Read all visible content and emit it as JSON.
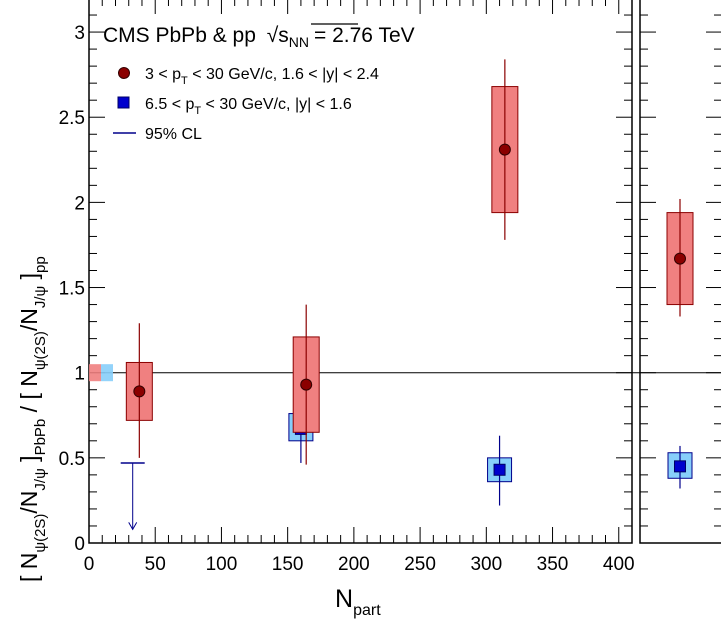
{
  "chart_data": {
    "type": "scatter",
    "title": "CMS PbPb & pp",
    "energy_label": {
      "sqrt": "s",
      "sub": "NN",
      "value": "= 2.76 TeV"
    },
    "xlabel": {
      "main": "N",
      "sub": "part"
    },
    "ylabel": {
      "p1": "[ N",
      "s1": "ψ(2S)",
      "p2": "/N",
      "s2": "J/ψ",
      "p3": " ]",
      "s3": "PbPb",
      "p4": " / [ N",
      "s4": "ψ(2S)",
      "p5": "/N",
      "s5": "J/ψ",
      "p6": " ]",
      "s6": "pp"
    },
    "xlim": [
      0,
      410
    ],
    "ylim": [
      0,
      3.2
    ],
    "x_ticks": [
      "0",
      "50",
      "100",
      "150",
      "200",
      "250",
      "300",
      "350",
      "400"
    ],
    "y_ticks": [
      "0",
      "0.5",
      "1",
      "1.5",
      "2",
      "2.5",
      "3"
    ],
    "reference_line": 1,
    "legend": {
      "placement": "top-left",
      "entries": [
        {
          "key": "fwd",
          "parts": [
            "3 < p",
            "T",
            " < 30 GeV/c, 1.6 < |y| < 2.4"
          ]
        },
        {
          "key": "mid",
          "parts": [
            "6.5 < p",
            "T",
            " < 30 GeV/c, |y| < 1.6"
          ]
        },
        {
          "key": "cl",
          "parts": [
            "95% CL"
          ]
        }
      ]
    },
    "series": [
      {
        "name": "3 < pT < 30 GeV/c, 1.6 < |y| < 2.4",
        "color": "#8b0000",
        "box_fill": "#f08080",
        "points": [
          {
            "x": 38,
            "y": 0.89,
            "stat": [
              0.5,
              1.29
            ],
            "syst": [
              0.72,
              1.06
            ]
          },
          {
            "x": 164,
            "y": 0.93,
            "stat": [
              0.46,
              1.4
            ],
            "syst": [
              0.65,
              1.21
            ]
          },
          {
            "x": 314,
            "y": 2.31,
            "stat": [
              1.78,
              2.84
            ],
            "syst": [
              1.94,
              2.68
            ]
          }
        ],
        "integrated": {
          "y": 1.67,
          "stat": [
            1.33,
            2.02
          ],
          "syst": [
            1.4,
            1.94
          ]
        }
      },
      {
        "name": "6.5 < pT < 30 GeV/c, |y| < 1.6",
        "color": "#00008b",
        "box_fill": "#87cefa",
        "points": [
          {
            "x": 160,
            "y": 0.67,
            "stat": [
              0.47,
              0.88
            ],
            "syst": [
              0.6,
              0.76
            ]
          },
          {
            "x": 310,
            "y": 0.43,
            "stat": [
              0.22,
              0.63
            ],
            "syst": [
              0.36,
              0.5
            ]
          }
        ],
        "integrated": {
          "y": 0.45,
          "stat": [
            0.32,
            0.57
          ],
          "syst": [
            0.38,
            0.53
          ]
        }
      }
    ],
    "upper_limit": {
      "x": 33,
      "y": 0.47,
      "label": "95% CL",
      "color": "#00008b"
    },
    "global_uncertainty": [
      {
        "series": "3 < pT < 30 GeV/c, 1.6 < |y| < 2.4",
        "range": [
          0.95,
          1.05
        ],
        "color": "#f08080"
      },
      {
        "series": "6.5 < pT < 30 GeV/c, |y| < 1.6",
        "range": [
          0.95,
          1.05
        ],
        "color": "#87cefa"
      }
    ]
  }
}
